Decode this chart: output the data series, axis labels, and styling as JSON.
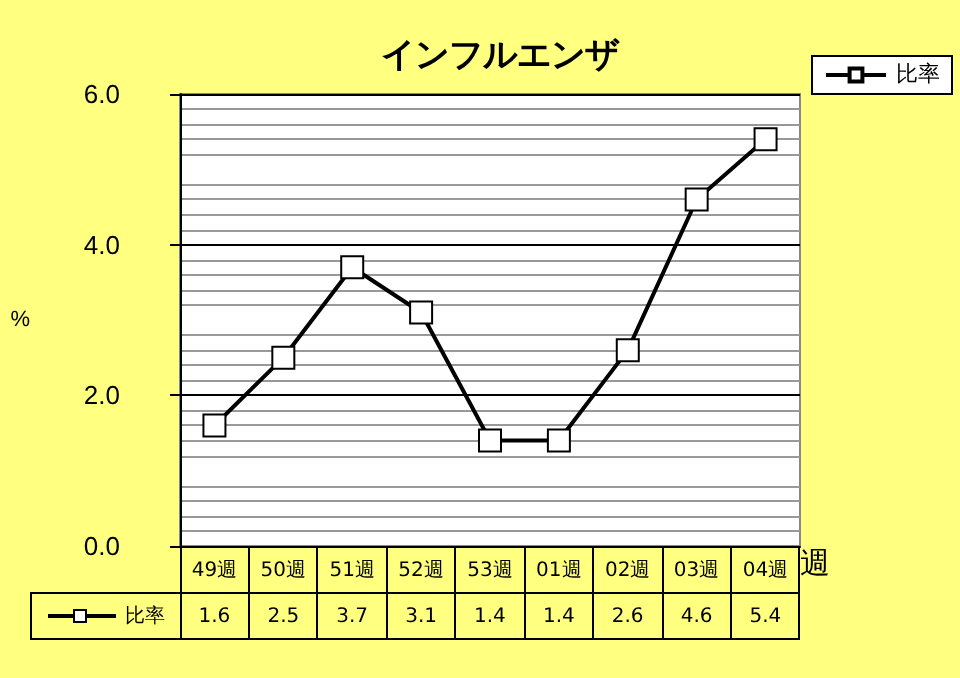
{
  "chart_data": {
    "type": "line",
    "title": "インフルエンザ",
    "ylabel": "%",
    "xlabel": "週",
    "categories": [
      "49週",
      "50週",
      "51週",
      "52週",
      "53週",
      "01週",
      "02週",
      "03週",
      "04週"
    ],
    "series": [
      {
        "name": "比率",
        "color": "#000000",
        "values": [
          1.6,
          2.5,
          3.7,
          3.1,
          1.4,
          1.4,
          2.6,
          4.6,
          5.4
        ]
      }
    ],
    "ylim": [
      0,
      6
    ],
    "yticks": [
      {
        "value": 0,
        "label": "0.0"
      },
      {
        "value": 2,
        "label": "2.0"
      },
      {
        "value": 4,
        "label": "4.0"
      },
      {
        "value": 6,
        "label": "6.0"
      }
    ],
    "grid": "y",
    "legend": "top right",
    "marker": "square",
    "data_labels": true
  }
}
